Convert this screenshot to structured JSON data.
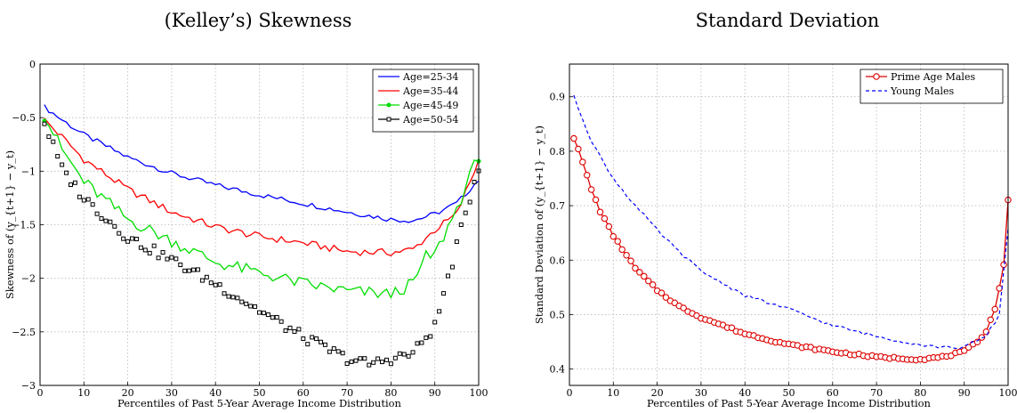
{
  "chart_data": [
    {
      "type": "line",
      "title": "(Kelley’s) Skewness",
      "xlabel": "Percentiles of Past 5-Year Average Income Distribution",
      "ylabel": "Skewness of (y_{t+1} − y_t)",
      "xlim": [
        0,
        100
      ],
      "ylim": [
        -3,
        0
      ],
      "xticks": [
        0,
        10,
        20,
        30,
        40,
        50,
        60,
        70,
        80,
        90,
        100
      ],
      "yticks": [
        0,
        -0.5,
        -1,
        -1.5,
        -2,
        -2.5,
        -3
      ],
      "xtick_labels": [
        "0",
        "10",
        "20",
        "30",
        "40",
        "50",
        "60",
        "70",
        "80",
        "90",
        "100"
      ],
      "ytick_labels": [
        "0",
        "−0.5",
        "−1",
        "−1.5",
        "−2",
        "−2.5",
        "−3"
      ],
      "grid": true,
      "legend_position": "top-right",
      "series": [
        {
          "name": "Age=25-34",
          "color": "#0000ff",
          "style": "line",
          "x": [
            1,
            5,
            10,
            20,
            30,
            40,
            50,
            60,
            70,
            80,
            85,
            90,
            95,
            100
          ],
          "y": [
            -0.4,
            -0.52,
            -0.66,
            -0.87,
            -1.02,
            -1.13,
            -1.22,
            -1.3,
            -1.38,
            -1.45,
            -1.46,
            -1.4,
            -1.3,
            -1.08
          ]
        },
        {
          "name": "Age=35-44",
          "color": "#ff0000",
          "style": "line",
          "x": [
            1,
            5,
            10,
            20,
            30,
            40,
            50,
            60,
            70,
            80,
            85,
            90,
            95,
            100
          ],
          "y": [
            -0.52,
            -0.68,
            -0.89,
            -1.17,
            -1.38,
            -1.52,
            -1.61,
            -1.67,
            -1.75,
            -1.76,
            -1.73,
            -1.55,
            -1.4,
            -0.9
          ]
        },
        {
          "name": "Age=45-49",
          "color": "#00dd00",
          "style": "line-marker",
          "x": [
            1,
            5,
            10,
            20,
            30,
            40,
            50,
            60,
            70,
            80,
            85,
            88,
            90,
            95,
            100
          ],
          "y": [
            -0.48,
            -0.8,
            -1.1,
            -1.45,
            -1.65,
            -1.85,
            -1.95,
            -2.05,
            -2.12,
            -2.15,
            -2.05,
            -1.8,
            -1.78,
            -1.35,
            -0.85
          ]
        },
        {
          "name": "Age=50-54",
          "color": "#000000",
          "style": "marker",
          "x": [
            1,
            5,
            10,
            20,
            30,
            40,
            50,
            60,
            70,
            75,
            80,
            85,
            90,
            95,
            100
          ],
          "y": [
            -0.55,
            -0.98,
            -1.25,
            -1.62,
            -1.83,
            -2.05,
            -2.3,
            -2.55,
            -2.75,
            -2.8,
            -2.75,
            -2.7,
            -2.45,
            -1.7,
            -0.95
          ]
        }
      ]
    },
    {
      "type": "line",
      "title": "Standard Deviation",
      "xlabel": "Percentiles of Past 5-Year Average Income Distribution",
      "ylabel": "Standard Deviation of (y_{t+1} − y_t)",
      "xlim": [
        0,
        100
      ],
      "ylim": [
        0.37,
        0.96
      ],
      "xticks": [
        0,
        10,
        20,
        30,
        40,
        50,
        60,
        70,
        80,
        90,
        100
      ],
      "yticks": [
        0.4,
        0.5,
        0.6,
        0.7,
        0.8,
        0.9
      ],
      "xtick_labels": [
        "0",
        "10",
        "20",
        "30",
        "40",
        "50",
        "60",
        "70",
        "80",
        "90",
        "100"
      ],
      "ytick_labels": [
        "0.4",
        "0.5",
        "0.6",
        "0.7",
        "0.8",
        "0.9"
      ],
      "grid": true,
      "legend_position": "top-right",
      "series": [
        {
          "name": "Prime Age Males",
          "color": "#dd0000",
          "style": "line-circle",
          "x": [
            1,
            3,
            5,
            7,
            10,
            15,
            20,
            25,
            30,
            40,
            50,
            60,
            70,
            80,
            85,
            90,
            93,
            95,
            97,
            99,
            100
          ],
          "y": [
            0.825,
            0.78,
            0.73,
            0.69,
            0.645,
            0.585,
            0.545,
            0.515,
            0.495,
            0.465,
            0.445,
            0.432,
            0.422,
            0.418,
            0.422,
            0.432,
            0.45,
            0.47,
            0.51,
            0.59,
            0.71
          ]
        },
        {
          "name": "Young Males",
          "color": "#0000ff",
          "style": "dashed",
          "x": [
            1,
            3,
            5,
            7,
            10,
            15,
            20,
            25,
            30,
            40,
            50,
            60,
            70,
            80,
            85,
            90,
            95,
            98,
            100
          ],
          "y": [
            0.9,
            0.86,
            0.82,
            0.79,
            0.75,
            0.7,
            0.655,
            0.615,
            0.58,
            0.535,
            0.51,
            0.48,
            0.46,
            0.445,
            0.44,
            0.44,
            0.46,
            0.5,
            0.66
          ]
        }
      ]
    }
  ]
}
